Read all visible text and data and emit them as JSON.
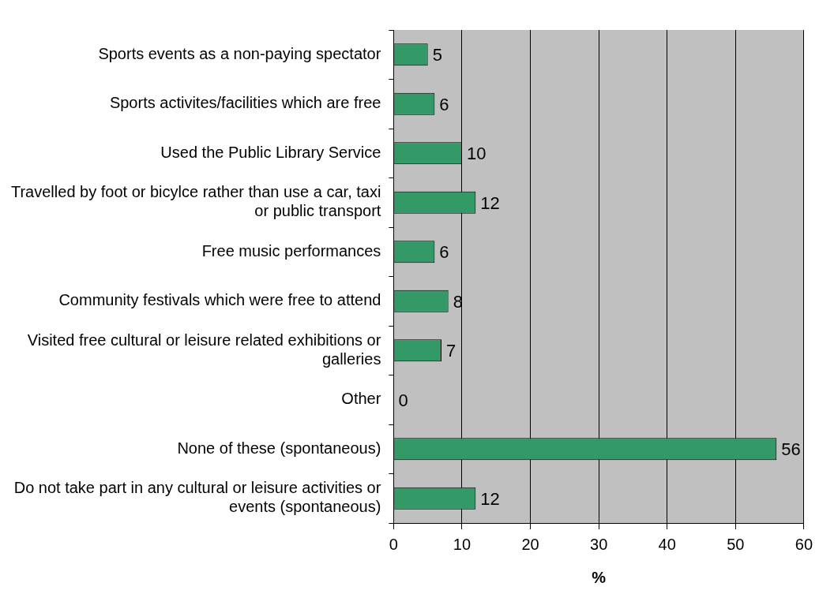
{
  "chart_data": {
    "type": "bar",
    "orientation": "horizontal",
    "xlabel": "%",
    "categories": [
      "Sports events as a non-paying spectator",
      "Sports activites/facilities which are free",
      "Used the Public Library Service",
      "Travelled by foot or bicylce rather than use a car, taxi or public transport",
      "Free music performances",
      "Community festivals which were free to attend",
      "Visited free cultural or leisure related exhibitions or galleries",
      "Other",
      "None of these (spontaneous)",
      "Do not take part in any cultural or leisure activities or events (spontaneous)"
    ],
    "values": [
      5,
      6,
      10,
      12,
      6,
      8,
      7,
      0,
      56,
      12
    ],
    "color": "#339966",
    "xlim": [
      0,
      60
    ],
    "xticks": [
      0,
      10,
      20,
      30,
      40,
      50,
      60
    ],
    "grid": "x",
    "data_labels": true,
    "legend": false
  }
}
